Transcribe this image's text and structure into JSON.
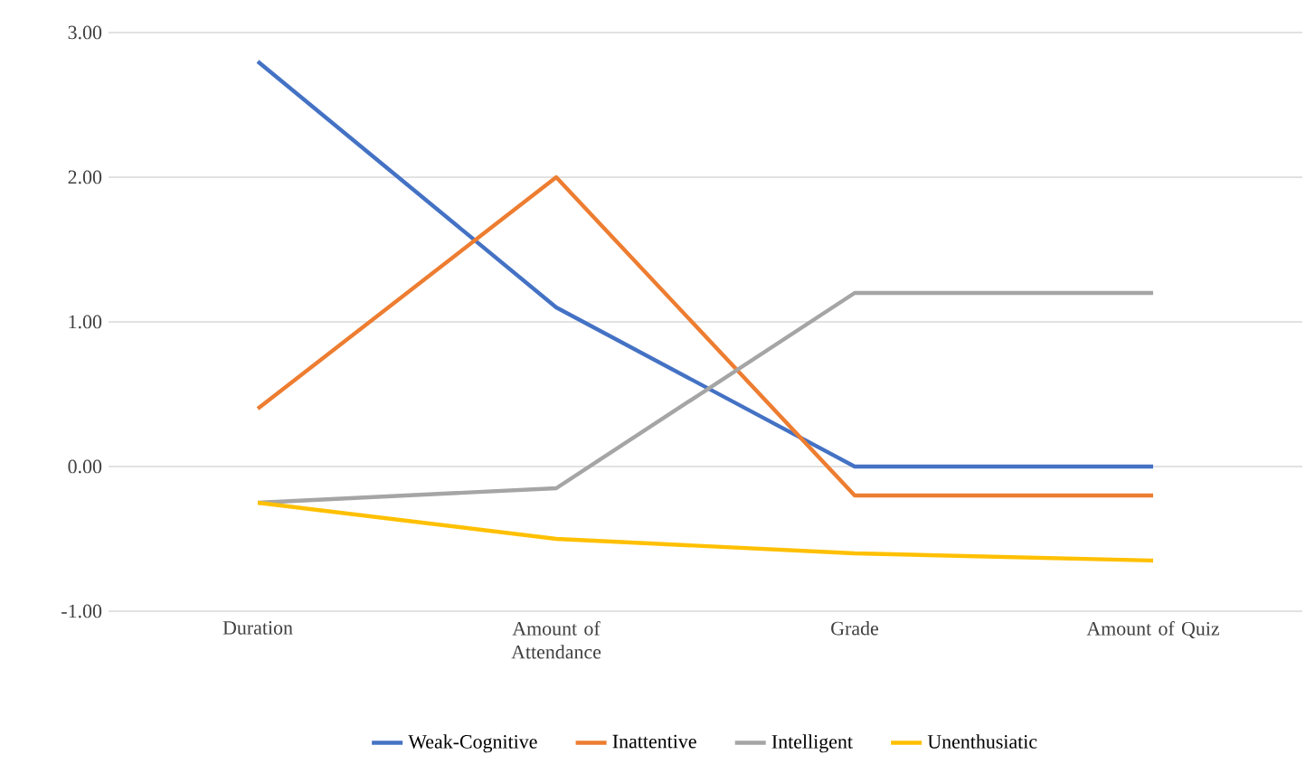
{
  "chart_data": {
    "type": "line",
    "categories": [
      "Duration",
      "Amount of Attendance",
      "Grade",
      "Amount of Quiz"
    ],
    "ylim": [
      -1,
      3
    ],
    "yticks": [
      {
        "value": -1,
        "label": "-1.00"
      },
      {
        "value": 0,
        "label": "0.00"
      },
      {
        "value": 1,
        "label": "1.00"
      },
      {
        "value": 2,
        "label": "2.00"
      },
      {
        "value": 3,
        "label": "3.00"
      }
    ],
    "grid": "y",
    "legend": "bottom",
    "series": [
      {
        "name": "Weak-Cognitive",
        "color": "#4472c4",
        "values": [
          2.8,
          1.1,
          0.0,
          0.0
        ]
      },
      {
        "name": "Inattentive",
        "color": "#ed7d31",
        "values": [
          0.4,
          2.0,
          -0.2,
          -0.2
        ]
      },
      {
        "name": "Intelligent",
        "color": "#a5a5a5",
        "values": [
          -0.25,
          -0.15,
          1.2,
          1.2
        ]
      },
      {
        "name": "Unenthusiatic",
        "color": "#ffc000",
        "values": [
          -0.25,
          -0.5,
          -0.6,
          -0.65
        ]
      }
    ]
  }
}
